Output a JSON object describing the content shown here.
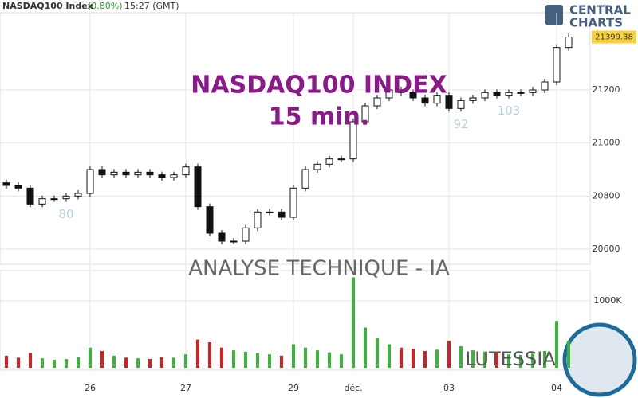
{
  "header": {
    "name": "NASDAQ100 Index",
    "change": "(0.80%)",
    "time": "15:27 (GMT)"
  },
  "logo": {
    "line1": "CENTRAL",
    "line2": "CHARTS"
  },
  "overlay": {
    "title": "NASDAQ100 INDEX",
    "subtitle": "15 min.",
    "banner": "ANALYSE TECHNIQUE - IA",
    "brand": "LUTESSIA"
  },
  "chart_data": [
    {
      "type": "candlestick",
      "categories": [
        null,
        null,
        null,
        null,
        null,
        null,
        null,
        "26",
        null,
        null,
        null,
        null,
        null,
        null,
        null,
        "27",
        null,
        null,
        null,
        null,
        null,
        null,
        null,
        null,
        "29",
        null,
        null,
        null,
        null,
        "déc.",
        null,
        null,
        null,
        null,
        null,
        null,
        null,
        "03",
        null,
        null,
        null,
        null,
        null,
        null,
        null,
        null,
        "04",
        null
      ],
      "open": [
        20850,
        20840,
        20830,
        20770,
        20790,
        20790,
        20800,
        20810,
        20900,
        20880,
        20890,
        20880,
        20890,
        20880,
        20870,
        20880,
        20910,
        20760,
        20660,
        20630,
        20630,
        20680,
        20740,
        20740,
        20720,
        20830,
        20900,
        20920,
        20940,
        20940,
        21080,
        21140,
        21170,
        21200,
        21190,
        21170,
        21150,
        21180,
        21130,
        21160,
        21170,
        21190,
        21180,
        21190,
        21190,
        21200,
        21230,
        21360
      ],
      "high": [
        20862,
        20852,
        20842,
        20802,
        20802,
        20812,
        20822,
        20912,
        20912,
        20902,
        20902,
        20902,
        20902,
        20892,
        20892,
        20922,
        20922,
        20772,
        20672,
        20642,
        20692,
        20752,
        20752,
        20752,
        20842,
        20912,
        20932,
        20952,
        20952,
        21092,
        21152,
        21182,
        21212,
        21212,
        21202,
        21182,
        21192,
        21192,
        21172,
        21182,
        21202,
        21202,
        21202,
        21202,
        21212,
        21242,
        21372,
        21412
      ],
      "low": [
        20828,
        20818,
        20758,
        20758,
        20778,
        20778,
        20788,
        20798,
        20868,
        20868,
        20868,
        20868,
        20868,
        20858,
        20858,
        20868,
        20748,
        20648,
        20618,
        20618,
        20618,
        20668,
        20728,
        20708,
        20708,
        20818,
        20888,
        20908,
        20928,
        20928,
        21068,
        21128,
        21158,
        21178,
        21158,
        21138,
        21138,
        21118,
        21118,
        21148,
        21158,
        21168,
        21168,
        21178,
        21178,
        21188,
        21218,
        21348
      ],
      "close": [
        20840,
        20830,
        20770,
        20790,
        20790,
        20800,
        20810,
        20900,
        20880,
        20890,
        20880,
        20890,
        20880,
        20870,
        20880,
        20910,
        20760,
        20660,
        20630,
        20630,
        20680,
        20740,
        20740,
        20720,
        20830,
        20900,
        20920,
        20940,
        20940,
        21080,
        21140,
        21170,
        21200,
        21190,
        21170,
        21150,
        21180,
        21130,
        21160,
        21170,
        21190,
        21180,
        21190,
        21190,
        21200,
        21230,
        21360,
        21399.38
      ],
      "last_label": "21399.38",
      "ylim": [
        20543,
        21539
      ],
      "yticks": [
        20600,
        20800,
        21000,
        21200
      ],
      "up_color": "#ffffff",
      "down_color": "#111111",
      "grid": true,
      "annotations": [
        {
          "text": "80",
          "index": 5
        },
        {
          "text": "92",
          "index": 38
        },
        {
          "text": "103",
          "index": 42
        }
      ]
    },
    {
      "type": "volume",
      "values": [
        180,
        150,
        220,
        140,
        120,
        130,
        160,
        300,
        250,
        180,
        150,
        140,
        130,
        160,
        150,
        200,
        420,
        380,
        300,
        260,
        240,
        220,
        200,
        180,
        350,
        300,
        260,
        230,
        200,
        1350,
        600,
        450,
        350,
        300,
        280,
        250,
        270,
        400,
        320,
        260,
        240,
        220,
        200,
        190,
        210,
        250,
        700,
        400
      ],
      "ylim": [
        0,
        1450
      ],
      "yticks": [
        {
          "value": 1000,
          "label": "1000K"
        }
      ],
      "up_color": "#3cb43c",
      "down_color": "#d42020"
    }
  ]
}
